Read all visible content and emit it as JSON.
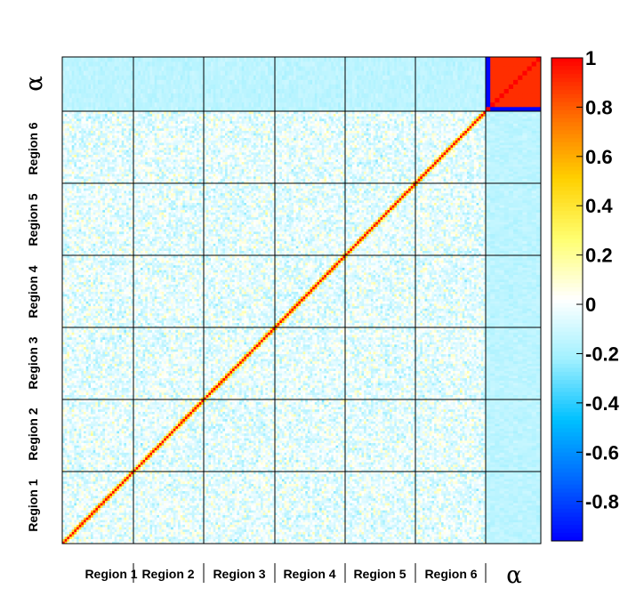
{
  "chart_data": {
    "type": "heatmap",
    "title": "",
    "blocks": [
      "Region 1",
      "Region 2",
      "Region 3",
      "Region 4",
      "Region 5",
      "Region 6",
      "α"
    ],
    "x_labels": [
      "Region 1",
      "Region 2",
      "Region 3",
      "Region 4",
      "Region 5",
      "Region 6",
      "α"
    ],
    "y_labels": [
      "Region 1",
      "Region 2",
      "Region 3",
      "Region 4",
      "Region 5",
      "Region 6",
      "α"
    ],
    "colorbar": {
      "min": -0.96,
      "max": 1.0,
      "ticks": [
        1,
        0.8,
        0.6,
        0.4,
        0.2,
        0,
        -0.2,
        -0.4,
        -0.6,
        -0.8
      ],
      "tick_labels": [
        "1",
        "0.8",
        "0.6",
        "0.4",
        "0.2",
        "0",
        "-0.2",
        "-0.4",
        "-0.6",
        "-0.8"
      ],
      "palette": [
        "#0000ff",
        "#0066ff",
        "#00c0ff",
        "#a0f0ff",
        "#ffffff",
        "#ffff70",
        "#ffd000",
        "#ff7000",
        "#ff0000"
      ]
    },
    "diagonal_value": 1.0,
    "alpha_block_internal_value": 0.9,
    "alpha_block_boundary_value": -0.95,
    "off_diagonal_typical_range": [
      -0.3,
      0.25
    ],
    "grid_lines": true
  }
}
